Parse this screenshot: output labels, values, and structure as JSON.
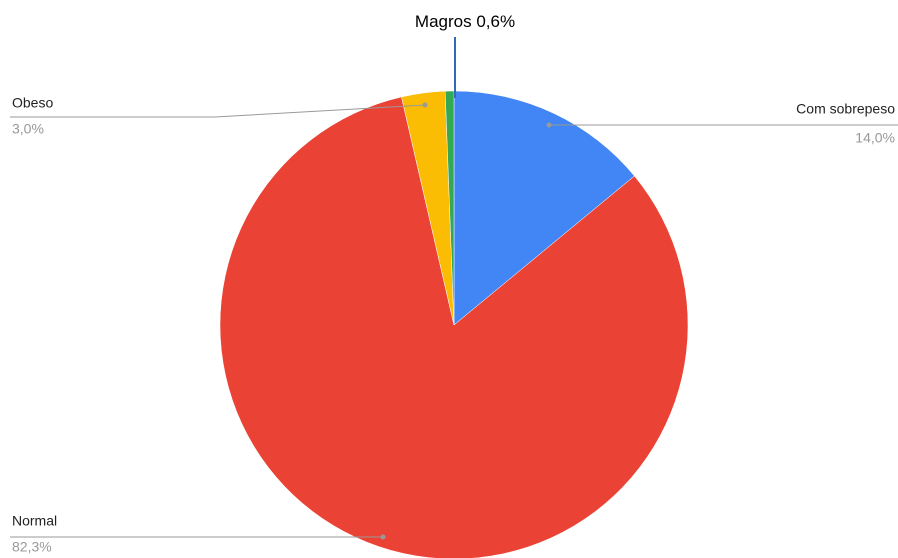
{
  "chart_data": {
    "type": "pie",
    "categories": [
      "Com sobrepeso",
      "Normal",
      "Obeso",
      "Magros"
    ],
    "values": [
      14.0,
      82.3,
      3.0,
      0.6
    ],
    "value_labels": [
      "14,0%",
      "82,3%",
      "3,0%",
      "0,6%"
    ],
    "colors": [
      "#4285f4",
      "#ea4335",
      "#fbbc04",
      "#34a853"
    ]
  }
}
